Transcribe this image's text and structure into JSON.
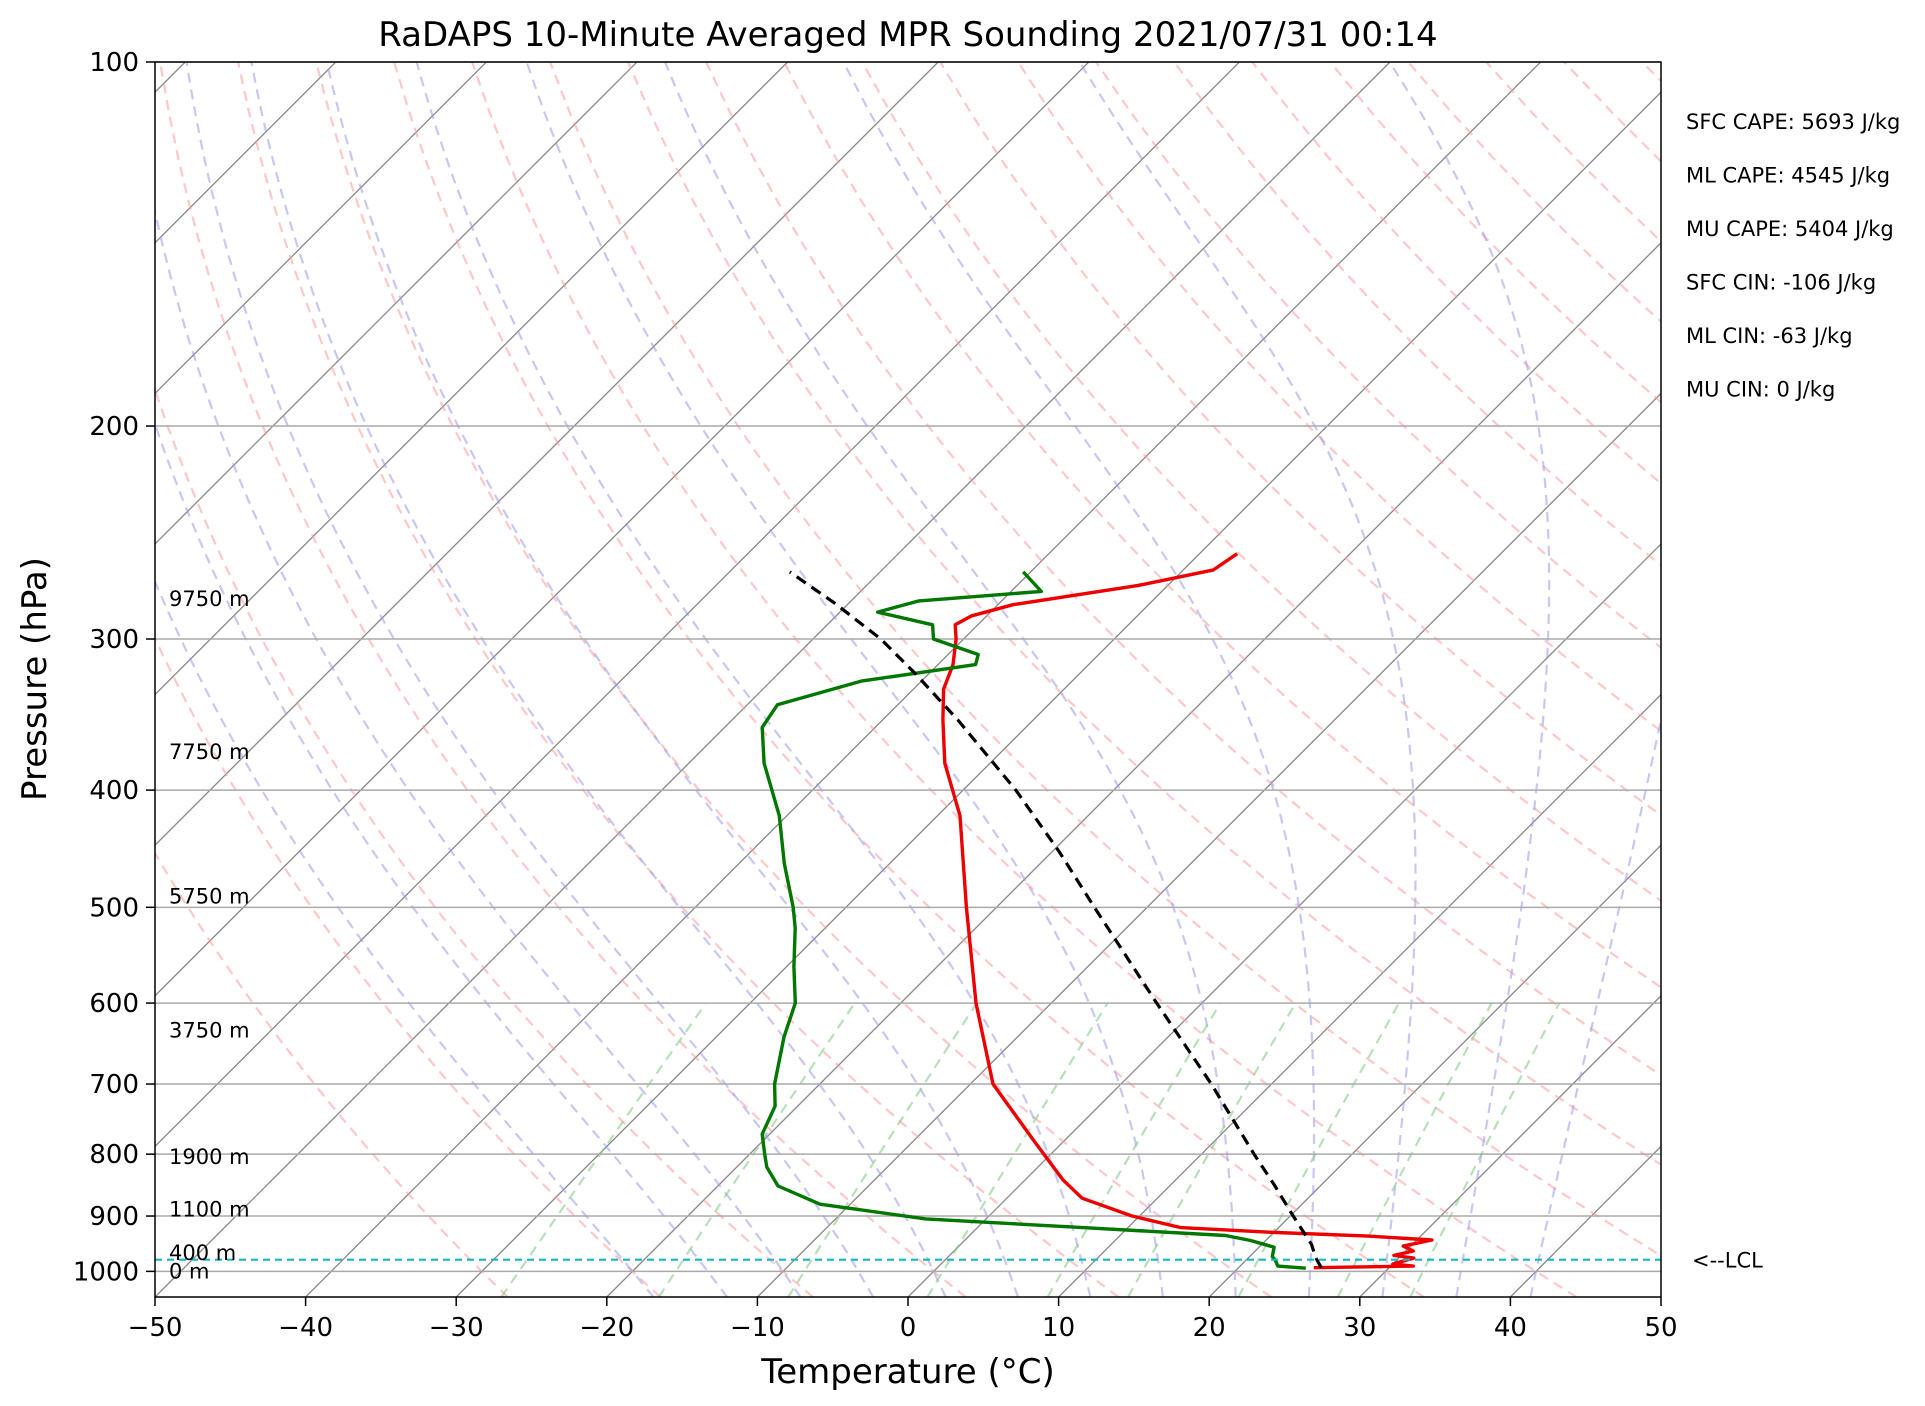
{
  "chart_data": {
    "type": "line",
    "title": "RaDAPS 10-Minute Averaged MPR Sounding 2021/07/31 00:14",
    "xlabel": "Temperature (°C)",
    "ylabel": "Pressure (hPa)",
    "xlim": [
      -50,
      50
    ],
    "ylim": [
      1050,
      100
    ],
    "y_scale": "log",
    "skew": true,
    "grid": true,
    "x_ticks": [
      -50,
      -40,
      -30,
      -20,
      -10,
      0,
      10,
      20,
      30,
      40,
      50
    ],
    "x_tick_labels": [
      "−50",
      "−40",
      "−30",
      "−20",
      "−10",
      "0",
      "10",
      "20",
      "30",
      "40",
      "50"
    ],
    "y_ticks": [
      100,
      200,
      300,
      400,
      500,
      600,
      700,
      800,
      900,
      1000
    ],
    "y_tick_labels": [
      "100",
      "200",
      "300",
      "400",
      "500",
      "600",
      "700",
      "800",
      "900",
      "1000"
    ],
    "colors": {
      "temperature": "#ee0000",
      "dewpoint": "#007700",
      "parcel": "#000000",
      "dry_adiabat": "#ff9999",
      "moist_adiabat": "#9999ee",
      "mixing_ratio": "#88cc88",
      "isotherm": "#888888",
      "lcl": "#17b8c4"
    },
    "series": [
      {
        "name": "Temperature",
        "points": [
          {
            "p": 993,
            "t": 25.0
          },
          {
            "p": 990,
            "t": 31.5
          },
          {
            "p": 986,
            "t": 30.0
          },
          {
            "p": 975,
            "t": 31.0
          },
          {
            "p": 970,
            "t": 29.5
          },
          {
            "p": 962,
            "t": 30.5
          },
          {
            "p": 953,
            "t": 29.5
          },
          {
            "p": 942,
            "t": 31.0
          },
          {
            "p": 935,
            "t": 26.5
          },
          {
            "p": 928,
            "t": 19.5
          },
          {
            "p": 920,
            "t": 13.5
          },
          {
            "p": 900,
            "t": 9.5
          },
          {
            "p": 870,
            "t": 5.0
          },
          {
            "p": 840,
            "t": 2.5
          },
          {
            "p": 780,
            "t": -2.0
          },
          {
            "p": 700,
            "t": -8.5
          },
          {
            "p": 600,
            "t": -15.0
          },
          {
            "p": 500,
            "t": -22.0
          },
          {
            "p": 420,
            "t": -28.5
          },
          {
            "p": 380,
            "t": -33.0
          },
          {
            "p": 350,
            "t": -36.0
          },
          {
            "p": 330,
            "t": -38.0
          },
          {
            "p": 315,
            "t": -39.0
          },
          {
            "p": 300,
            "t": -40.5
          },
          {
            "p": 292,
            "t": -41.5
          },
          {
            "p": 287,
            "t": -41.0
          },
          {
            "p": 281,
            "t": -39.0
          },
          {
            "p": 271,
            "t": -32.0
          },
          {
            "p": 263,
            "t": -28.0
          },
          {
            "p": 255,
            "t": -27.5
          }
        ]
      },
      {
        "name": "Dewpoint",
        "points": [
          {
            "p": 994,
            "t": 24.5
          },
          {
            "p": 990,
            "t": 22.5
          },
          {
            "p": 980,
            "t": 22.0
          },
          {
            "p": 972,
            "t": 21.5
          },
          {
            "p": 955,
            "t": 21.0
          },
          {
            "p": 943,
            "t": 19.0
          },
          {
            "p": 934,
            "t": 17.0
          },
          {
            "p": 920,
            "t": 7.0
          },
          {
            "p": 905,
            "t": -4.0
          },
          {
            "p": 880,
            "t": -12.0
          },
          {
            "p": 850,
            "t": -16.0
          },
          {
            "p": 820,
            "t": -18.0
          },
          {
            "p": 800,
            "t": -19.0
          },
          {
            "p": 770,
            "t": -20.5
          },
          {
            "p": 730,
            "t": -21.5
          },
          {
            "p": 700,
            "t": -23.0
          },
          {
            "p": 640,
            "t": -25.5
          },
          {
            "p": 600,
            "t": -27.0
          },
          {
            "p": 560,
            "t": -29.5
          },
          {
            "p": 520,
            "t": -32.0
          },
          {
            "p": 500,
            "t": -33.5
          },
          {
            "p": 460,
            "t": -37.0
          },
          {
            "p": 420,
            "t": -40.5
          },
          {
            "p": 380,
            "t": -45.0
          },
          {
            "p": 355,
            "t": -47.5
          },
          {
            "p": 340,
            "t": -48.0
          },
          {
            "p": 325,
            "t": -44.0
          },
          {
            "p": 315,
            "t": -37.5
          },
          {
            "p": 309,
            "t": -38.0
          },
          {
            "p": 300,
            "t": -42.0
          },
          {
            "p": 292,
            "t": -43.0
          },
          {
            "p": 285,
            "t": -47.5
          },
          {
            "p": 279,
            "t": -45.5
          },
          {
            "p": 274,
            "t": -38.0
          },
          {
            "p": 264,
            "t": -40.5
          }
        ]
      },
      {
        "name": "Parcel",
        "points": [
          {
            "p": 993,
            "t": 25.5
          },
          {
            "p": 975,
            "t": 24.5
          },
          {
            "p": 950,
            "t": 23.3
          },
          {
            "p": 900,
            "t": 20.2
          },
          {
            "p": 850,
            "t": 17.0
          },
          {
            "p": 800,
            "t": 13.5
          },
          {
            "p": 700,
            "t": 6.0
          },
          {
            "p": 600,
            "t": -3.0
          },
          {
            "p": 500,
            "t": -13.5
          },
          {
            "p": 450,
            "t": -19.5
          },
          {
            "p": 400,
            "t": -26.5
          },
          {
            "p": 350,
            "t": -35.0
          },
          {
            "p": 320,
            "t": -41.0
          },
          {
            "p": 300,
            "t": -45.5
          },
          {
            "p": 280,
            "t": -51.0
          },
          {
            "p": 264,
            "t": -56.0
          }
        ]
      }
    ],
    "lcl": {
      "pressure": 978,
      "label": "<--LCL"
    },
    "height_labels": [
      {
        "text": "0 m",
        "p": 1000
      },
      {
        "text": "400 m",
        "p": 966
      },
      {
        "text": "1100 m",
        "p": 889
      },
      {
        "text": "1900 m",
        "p": 804
      },
      {
        "text": "3750 m",
        "p": 632
      },
      {
        "text": "5750 m",
        "p": 490
      },
      {
        "text": "7750 m",
        "p": 372
      },
      {
        "text": "9750 m",
        "p": 278
      }
    ],
    "indices": [
      "SFC CAPE: 5693 J/kg",
      "ML CAPE: 4545 J/kg",
      "MU CAPE: 5404 J/kg",
      "SFC CIN: -106 J/kg",
      "ML CIN: -63 J/kg",
      "MU CIN: 0 J/kg"
    ]
  }
}
